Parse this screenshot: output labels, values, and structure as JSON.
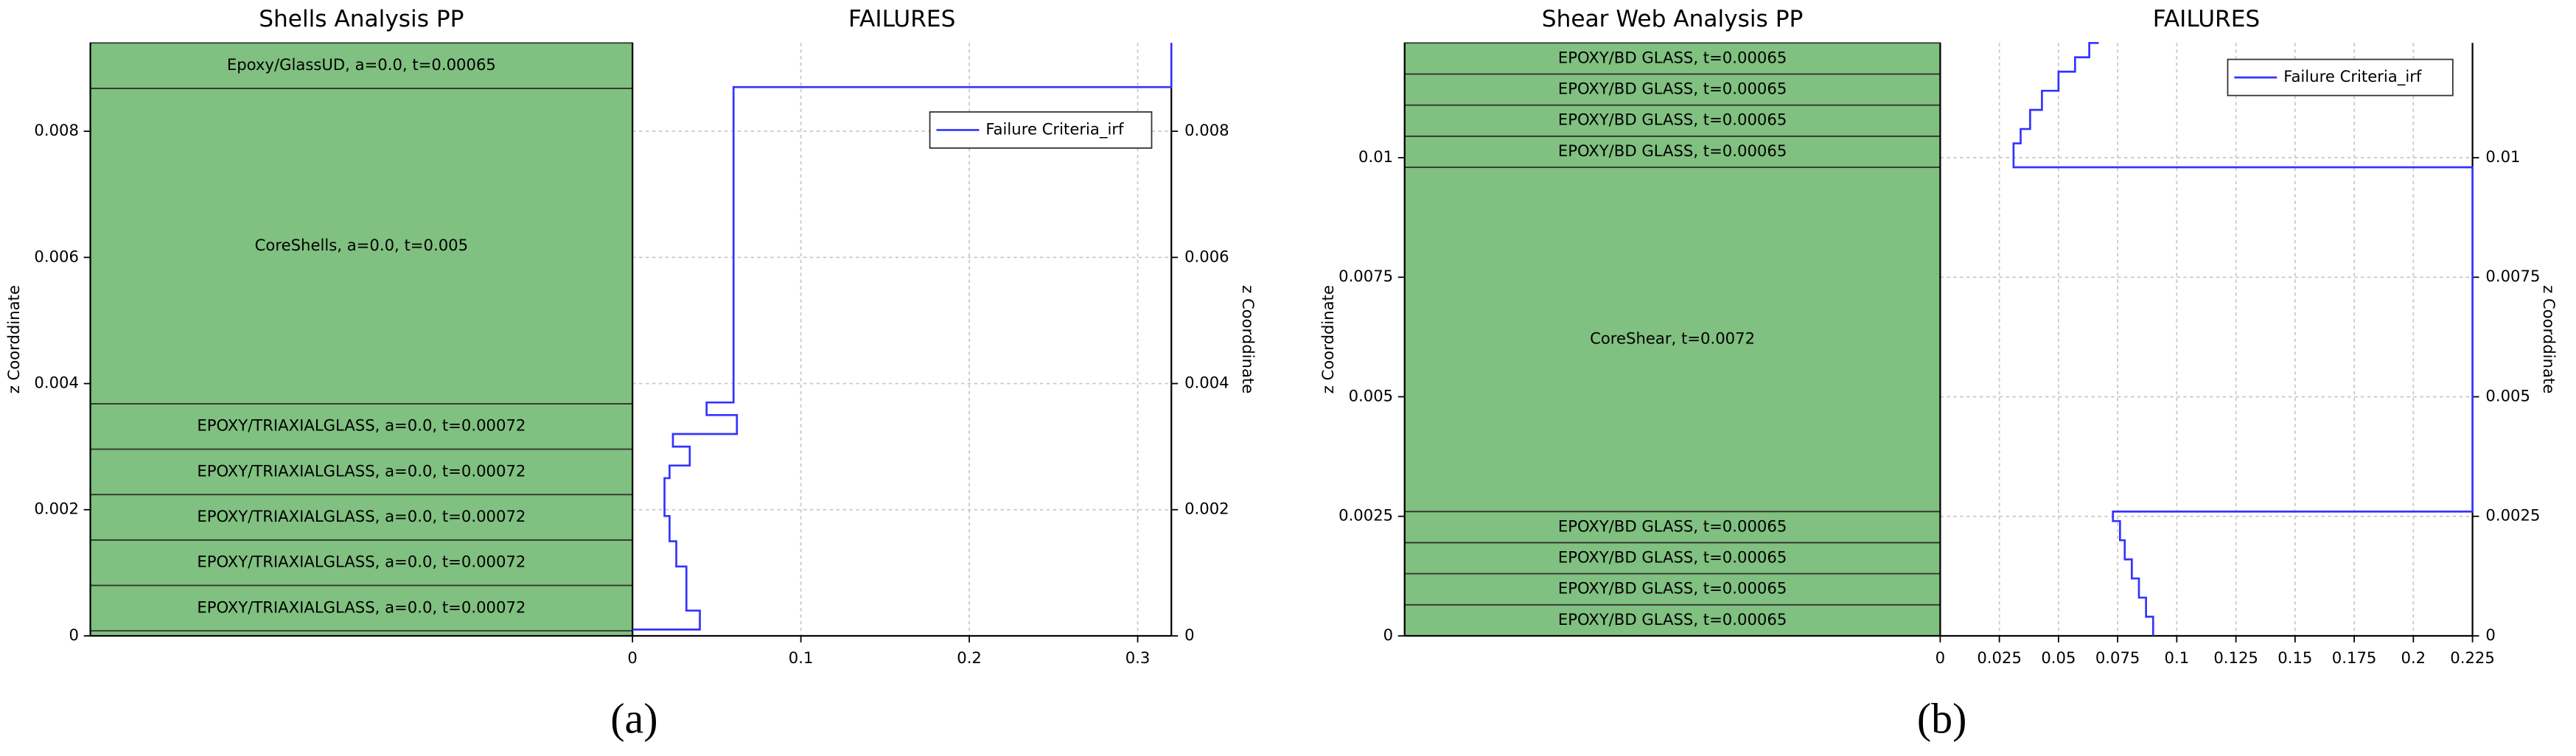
{
  "chart_data": [
    {
      "type": "step",
      "panel_label": "(a)",
      "layup_title": "Shells Analysis PP",
      "title": "FAILURES",
      "ylabel": "z Coorddinate",
      "legend": "upper right",
      "grid": true,
      "layer_color": "#80c080",
      "layers": [
        null,
        "EPOXY/TRIAXIALGLASS, a=0.0, t=0.00072",
        "EPOXY/TRIAXIALGLASS, a=0.0, t=0.00072",
        "EPOXY/TRIAXIALGLASS, a=0.0, t=0.00072",
        "EPOXY/TRIAXIALGLASS, a=0.0, t=0.00072",
        "EPOXY/TRIAXIALGLASS, a=0.0, t=0.00072",
        "CoreShells, a=0.0, t=0.005",
        "Epoxy/GlassUD, a=0.0, t=0.00065"
      ],
      "layer_bounds": [
        0,
        8e-05,
        0.0008,
        0.00152,
        0.00224,
        0.00296,
        0.00368,
        0.00868,
        0.0094
      ],
      "xlim": [
        0,
        0.32
      ],
      "xticks": [
        0,
        0.1,
        0.2,
        0.3
      ],
      "ylim": [
        0,
        0.0094
      ],
      "yticks": [
        0,
        0.002,
        0.004,
        0.006,
        0.008
      ],
      "series": [
        {
          "name": "Failure Criteria_irf",
          "color": "#3333ff",
          "x": [
            0,
            0.04,
            0.04,
            0.032,
            0.032,
            0.026,
            0.026,
            0.022,
            0.022,
            0.019,
            0.019,
            0.022,
            0.022,
            0.034,
            0.034,
            0.024,
            0.024,
            0.062,
            0.062,
            0.044,
            0.044,
            0.06,
            0.06,
            0.32,
            0.32
          ],
          "values": [
            0.0001,
            0.0001,
            0.0004,
            0.0004,
            0.0011,
            0.0011,
            0.0015,
            0.0015,
            0.0019,
            0.0019,
            0.0025,
            0.0025,
            0.0027,
            0.0027,
            0.003,
            0.003,
            0.0032,
            0.0032,
            0.0035,
            0.0035,
            0.0037,
            0.0037,
            0.0087,
            0.0087,
            0.0094
          ]
        }
      ]
    },
    {
      "type": "step",
      "panel_label": "(b)",
      "layup_title": "Shear Web Analysis PP",
      "title": "FAILURES",
      "ylabel": "z Coorddinate",
      "legend": "upper right",
      "grid": true,
      "layer_color": "#80c080",
      "layers": [
        "EPOXY/BD GLASS, t=0.00065",
        "EPOXY/BD GLASS, t=0.00065",
        "EPOXY/BD GLASS, t=0.00065",
        "EPOXY/BD GLASS, t=0.00065",
        "CoreShear, t=0.0072",
        "EPOXY/BD GLASS, t=0.00065",
        "EPOXY/BD GLASS, t=0.00065",
        "EPOXY/BD GLASS, t=0.00065",
        "EPOXY/BD GLASS, t=0.00065"
      ],
      "layer_bounds": [
        0,
        0.00065,
        0.0013,
        0.00195,
        0.0026,
        0.0098,
        0.01045,
        0.0111,
        0.01175,
        0.0124
      ],
      "xlim": [
        0,
        0.225
      ],
      "xticks": [
        0,
        0.025,
        0.05,
        0.075,
        0.1,
        0.125,
        0.15,
        0.175,
        0.2,
        0.225
      ],
      "ylim": [
        0,
        0.0124
      ],
      "yticks": [
        0,
        0.0025,
        0.005,
        0.0075,
        0.01
      ],
      "series": [
        {
          "name": "Failure Criteria_irf",
          "color": "#3333ff",
          "x": [
            0.09,
            0.09,
            0.087,
            0.087,
            0.084,
            0.084,
            0.081,
            0.081,
            0.078,
            0.078,
            0.076,
            0.076,
            0.073,
            0.073,
            0.225,
            0.225,
            0.031,
            0.031,
            0.034,
            0.034,
            0.038,
            0.038,
            0.043,
            0.043,
            0.05,
            0.05,
            0.057,
            0.057,
            0.063,
            0.063,
            0.067
          ],
          "values": [
            0,
            0.0004,
            0.0004,
            0.0008,
            0.0008,
            0.0012,
            0.0012,
            0.0016,
            0.0016,
            0.002,
            0.002,
            0.0024,
            0.0024,
            0.0026,
            0.0026,
            0.0098,
            0.0098,
            0.0103,
            0.0103,
            0.0106,
            0.0106,
            0.011,
            0.011,
            0.0114,
            0.0114,
            0.0118,
            0.0118,
            0.0121,
            0.0121,
            0.0124,
            0.0124
          ]
        }
      ]
    }
  ]
}
